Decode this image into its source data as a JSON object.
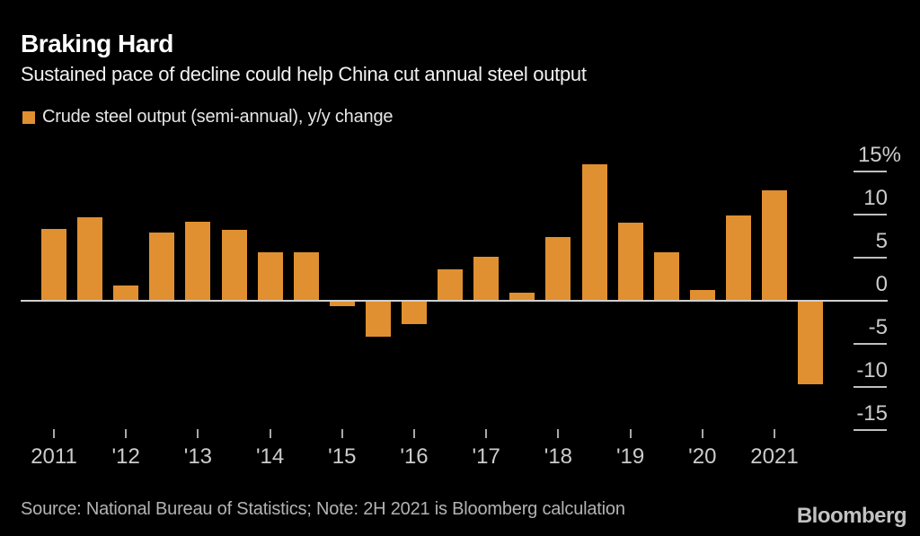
{
  "header": {
    "title": "Braking Hard",
    "subtitle": "Sustained pace of decline could help China cut annual steel output"
  },
  "legend": {
    "label": "Crude steel output (semi-annual), y/y change",
    "swatch_color": "#e09030"
  },
  "footer": {
    "source": "Source: National Bureau of Statistics; Note: 2H 2021 is Bloomberg calculation",
    "brand": "Bloomberg"
  },
  "colors": {
    "background": "#000000",
    "bar": "#e09030",
    "axis_text": "#cccccc",
    "axis_line": "#cfcfcf"
  },
  "chart_data": {
    "type": "bar",
    "title": "Braking Hard",
    "subtitle": "Sustained pace of decline could help China cut annual steel output",
    "series_name": "Crude steel output (semi-annual), y/y change",
    "unit": "%",
    "bar_color": "#e09030",
    "grid": "none",
    "legend_position": "top-left",
    "y_axis_side": "right",
    "periods": [
      "2011 H1",
      "2011 H2",
      "2012 H1",
      "2012 H2",
      "2013 H1",
      "2013 H2",
      "2014 H1",
      "2014 H2",
      "2015 H1",
      "2015 H2",
      "2016 H1",
      "2016 H2",
      "2017 H1",
      "2017 H2",
      "2018 H1",
      "2018 H2",
      "2019 H1",
      "2019 H2",
      "2020 H1",
      "2020 H2",
      "2021 H1",
      "2021 H2"
    ],
    "values": [
      8.4,
      9.7,
      1.8,
      7.9,
      9.2,
      8.3,
      5.6,
      5.6,
      -0.5,
      -4.1,
      -2.6,
      3.7,
      5.1,
      0.9,
      7.4,
      15.9,
      9.1,
      5.6,
      1.3,
      9.9,
      12.9,
      -9.6
    ],
    "x_tick_labels": [
      "2011",
      "'12",
      "'13",
      "'14",
      "'15",
      "'16",
      "'17",
      "'18",
      "'19",
      "'20",
      "2021"
    ],
    "y_axis": {
      "ticks": [
        15,
        10,
        5,
        0,
        -5,
        -10,
        -15
      ],
      "tick_labels": [
        "15%",
        "10",
        "5",
        "0",
        "-5",
        "-10",
        "-15"
      ],
      "ylim": [
        -15,
        17
      ]
    }
  }
}
